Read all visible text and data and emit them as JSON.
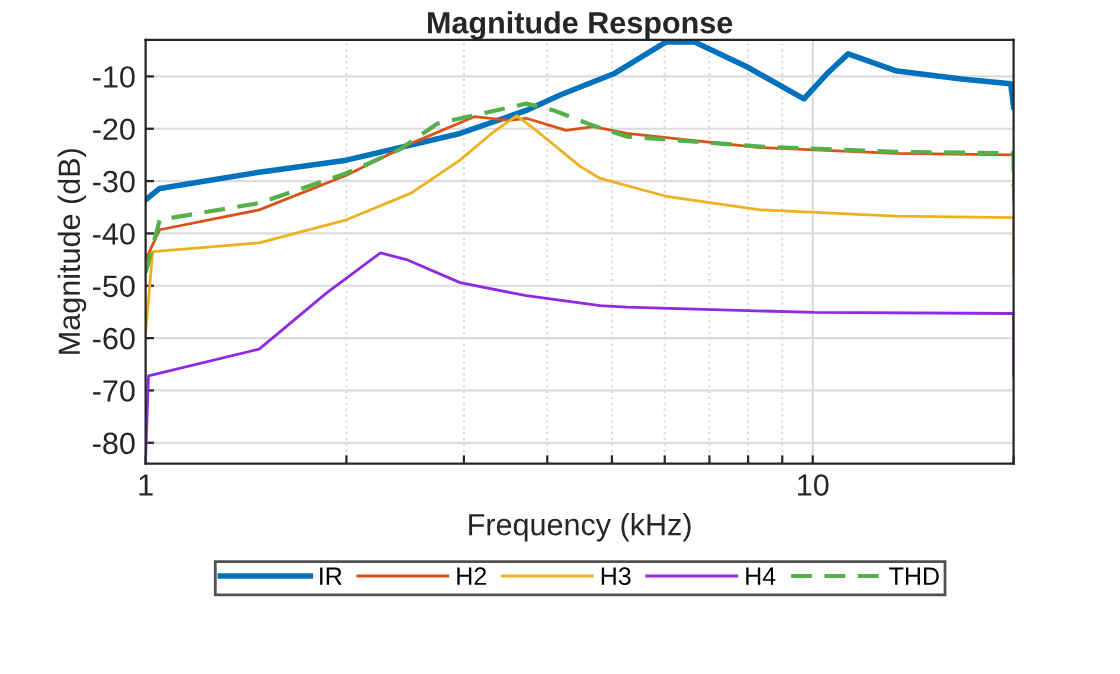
{
  "chart_data": {
    "type": "line",
    "title": "Magnitude Response",
    "xlabel": "Frequency (kHz)",
    "ylabel": "Magnitude (dB)",
    "log": "x",
    "xlim": [
      1,
      20
    ],
    "ylim": [
      -84,
      -3
    ],
    "xticks": [
      1,
      {
        "value": 2,
        "label": null
      },
      {
        "value": 3,
        "label": null
      },
      {
        "value": 4,
        "label": null
      },
      {
        "value": 5,
        "label": null
      },
      {
        "value": 6,
        "label": null
      },
      {
        "value": 7,
        "label": null
      },
      {
        "value": 8,
        "label": null
      },
      {
        "value": 9,
        "label": null
      },
      10,
      {
        "value": 20,
        "label": null
      }
    ],
    "yticks": [
      -80,
      -70,
      -60,
      -50,
      -40,
      -30,
      -20,
      -10
    ],
    "grid": true,
    "legend": "bottom",
    "marker": "none",
    "series": [
      {
        "name": "IR",
        "color": "#0072bd",
        "line_style": "solid",
        "x": [
          1.0,
          1.05,
          1.48,
          2.0,
          2.96,
          3.72,
          4.19,
          5.03,
          6.03,
          6.64,
          7.95,
          9.7,
          10.5,
          11.3,
          13.3,
          16.7,
          19.8,
          20
        ],
        "values": [
          -33.6,
          -31.4,
          -28.3,
          -26,
          -20.9,
          -16.5,
          -13.5,
          -9.5,
          -3.4,
          -3.4,
          -8.1,
          -14.3,
          -9.5,
          -5.7,
          -8.9,
          -10.5,
          -11.4,
          -15.8
        ]
      },
      {
        "name": "H2",
        "color": "#d95319",
        "line_style": "solid",
        "x": [
          1.0,
          1.05,
          1.48,
          2.0,
          2.5,
          3.11,
          3.5,
          3.72,
          4.27,
          4.69,
          5.26,
          8.34,
          13.3,
          20,
          20
        ],
        "values": [
          -45,
          -39.3,
          -35.5,
          -28.9,
          -22.8,
          -17.7,
          -18.4,
          -18,
          -20.3,
          -19.6,
          -20.9,
          -23.6,
          -24.7,
          -25,
          -33.6
        ]
      },
      {
        "name": "H3",
        "color": "#edb120",
        "line_style": "solid",
        "x": [
          1.0,
          1.025,
          1.48,
          2.0,
          2.5,
          2.96,
          3.3,
          3.6,
          3.9,
          4.48,
          4.8,
          6.03,
          8.34,
          13.3,
          20,
          20
        ],
        "values": [
          -58.9,
          -43.5,
          -41.8,
          -37.4,
          -32.3,
          -26,
          -20.9,
          -17.5,
          -20.9,
          -27.2,
          -29.5,
          -32.9,
          -35.5,
          -36.7,
          -37,
          -47.5
        ]
      },
      {
        "name": "H4",
        "color": "#8e2be2",
        "line_style": "solid",
        "x": [
          1.0,
          1.01,
          1.48,
          1.87,
          2.25,
          2.46,
          2.96,
          3.72,
          4.8,
          5.26,
          10.05,
          20,
          20
        ],
        "values": [
          -83,
          -67.2,
          -62.1,
          -51.3,
          -43.7,
          -45,
          -49.4,
          -51.9,
          -53.8,
          -54.1,
          -55.1,
          -55.3,
          -67.1
        ]
      },
      {
        "name": "THD",
        "color": "#55b04a",
        "line_style": "dashed",
        "x": [
          1.0,
          1.05,
          1.48,
          2.0,
          2.4,
          2.74,
          3.72,
          4.09,
          4.69,
          5.26,
          8.34,
          13.3,
          20,
          20
        ],
        "values": [
          -47.5,
          -37.4,
          -34.2,
          -28.5,
          -24,
          -19,
          -15.2,
          -16.5,
          -19.4,
          -21.5,
          -23.4,
          -24.4,
          -24.7,
          -31
        ]
      }
    ]
  }
}
